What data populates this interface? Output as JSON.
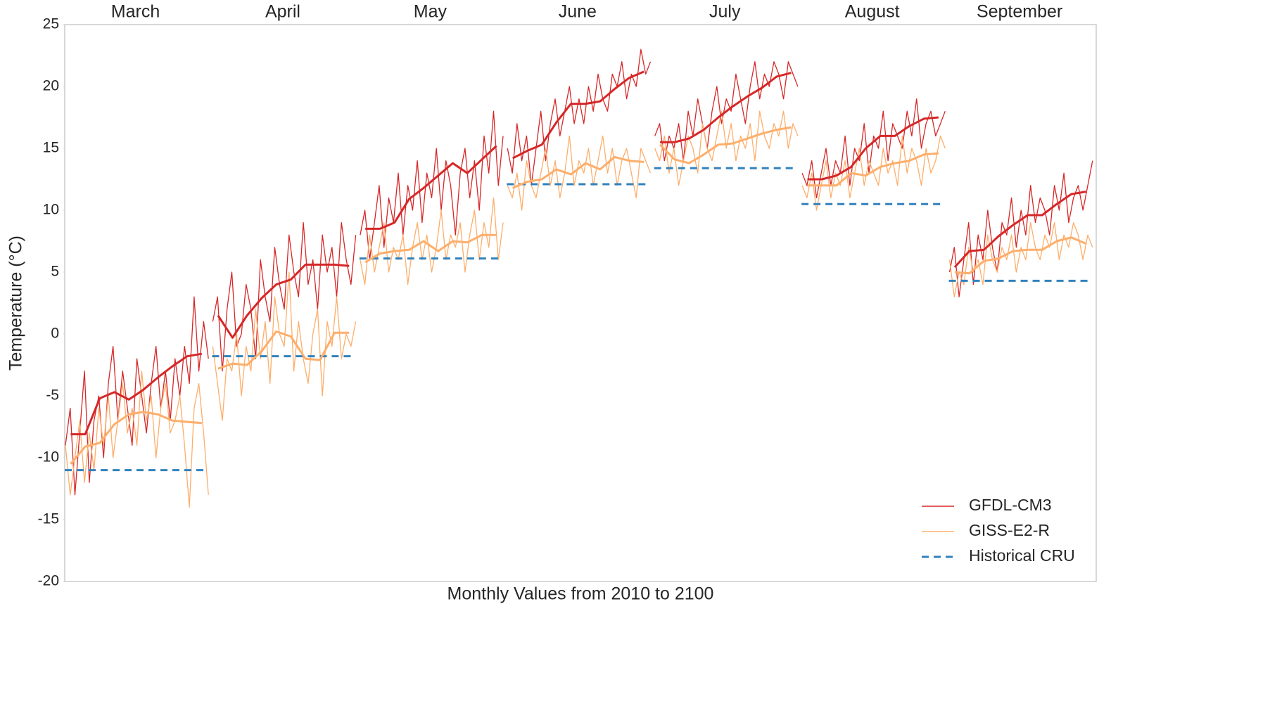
{
  "chart_data": {
    "type": "line",
    "xlabel": "Monthly Values from 2010 to 2100",
    "ylabel": "Temperature (°C)",
    "ylim": [
      -20,
      25
    ],
    "yticks": [
      -20,
      -15,
      -10,
      -5,
      0,
      5,
      10,
      15,
      20,
      25
    ],
    "legend": "lower right",
    "series": [
      {
        "name": "GFDL-CM3",
        "color": "#d62728"
      },
      {
        "name": "GISS-E2-R",
        "color": "#fdae6b"
      },
      {
        "name": "Historical CRU",
        "color": "#3182bd",
        "dashed": true
      }
    ],
    "panels": [
      {
        "title": "March",
        "gfdl": [
          -9,
          -6,
          -13,
          -8,
          -3,
          -12,
          -7,
          -5,
          -10,
          -4,
          -1,
          -7,
          -3,
          -6,
          -9,
          -2,
          -5,
          -8,
          -4,
          -1,
          -6,
          -3,
          -7,
          -2,
          -5,
          -1,
          -4,
          3,
          -3,
          1,
          -2
        ],
        "giss": [
          -9,
          -13,
          -10,
          -7,
          -12,
          -8,
          -11,
          -6,
          -9,
          -5,
          -10,
          -7,
          -4,
          -8,
          -6,
          -9,
          -3,
          -7,
          -5,
          -10,
          -6,
          -4,
          -8,
          -7,
          -5,
          -9,
          -14,
          -6,
          -4,
          -8,
          -13
        ],
        "gfdl_mean": [
          -8.1,
          -8.1,
          -5.2,
          -4.7,
          -5.3,
          -4.5,
          -3.5,
          -2.6,
          -1.8,
          -1.6
        ],
        "giss_mean": [
          -10.5,
          -9.1,
          -8.8,
          -7.3,
          -6.5,
          -6.3,
          -6.5,
          -7.0,
          -7.1,
          -7.2
        ],
        "cru": -11
      },
      {
        "title": "April",
        "gfdl": [
          1,
          3,
          -3,
          2,
          5,
          -1,
          0,
          4,
          2,
          -2,
          6,
          3,
          1,
          7,
          4,
          2,
          8,
          5,
          3,
          9,
          4,
          6,
          2,
          8,
          5,
          7,
          3,
          9,
          6,
          4,
          8
        ],
        "giss": [
          -1,
          -4,
          -7,
          -2,
          -3,
          0,
          -5,
          -1,
          -3,
          2,
          -2,
          1,
          -4,
          3,
          0,
          -1,
          5,
          -3,
          1,
          -2,
          -4,
          0,
          2,
          -5,
          1,
          -1,
          3,
          -2,
          0,
          -1,
          1
        ],
        "gfdl_mean": [
          1.5,
          -0.3,
          1.5,
          2.9,
          4.0,
          4.4,
          5.6,
          5.6,
          5.6,
          5.5
        ],
        "giss_mean": [
          -2.8,
          -2.4,
          -2.5,
          -1.4,
          0.2,
          -0.2,
          -2.0,
          -2.1,
          0.1,
          0.1
        ],
        "cru": -1.8
      },
      {
        "title": "May",
        "gfdl": [
          8,
          10,
          6,
          9,
          12,
          7,
          11,
          9,
          13,
          8,
          12,
          10,
          14,
          9,
          13,
          11,
          15,
          10,
          14,
          12,
          8,
          13,
          15,
          11,
          14,
          10,
          16,
          13,
          18,
          12,
          16
        ],
        "giss": [
          6,
          4,
          8,
          5,
          7,
          9,
          5,
          7,
          6,
          8,
          4,
          7,
          9,
          6,
          8,
          5,
          7,
          10,
          6,
          8,
          7,
          9,
          5,
          8,
          10,
          6,
          9,
          7,
          11,
          6,
          9
        ],
        "gfdl_mean": [
          8.5,
          8.5,
          9.0,
          10.9,
          11.8,
          12.8,
          13.8,
          13.0,
          14.1,
          15.2
        ],
        "giss_mean": [
          5.8,
          6.5,
          6.7,
          6.8,
          7.5,
          6.7,
          7.5,
          7.4,
          8.0,
          8.0
        ],
        "cru": 6.1
      },
      {
        "title": "June",
        "gfdl": [
          15,
          13,
          17,
          14,
          16,
          12,
          15,
          18,
          14,
          17,
          19,
          16,
          18,
          20,
          17,
          19,
          17,
          20,
          18,
          21,
          19,
          18,
          21,
          20,
          22,
          19,
          21,
          20,
          23,
          21,
          22
        ],
        "giss": [
          12,
          11,
          13,
          10,
          14,
          12,
          11,
          13,
          15,
          12,
          14,
          11,
          13,
          16,
          12,
          14,
          13,
          15,
          12,
          14,
          16,
          13,
          15,
          12,
          14,
          15,
          13,
          11,
          15,
          14,
          13
        ],
        "gfdl_mean": [
          14.2,
          14.8,
          15.3,
          17.1,
          18.6,
          18.6,
          18.8,
          19.8,
          20.7,
          21.2
        ],
        "giss_mean": [
          11.8,
          12.3,
          12.5,
          13.3,
          12.9,
          13.8,
          13.3,
          14.3,
          14.0,
          13.9
        ],
        "cru": 12.1
      },
      {
        "title": "July",
        "gfdl": [
          16,
          17,
          14,
          16,
          15,
          17,
          14,
          18,
          16,
          19,
          17,
          15,
          18,
          20,
          17,
          19,
          18,
          21,
          19,
          17,
          20,
          22,
          19,
          21,
          20,
          22,
          21,
          19,
          22,
          21,
          20
        ],
        "giss": [
          15,
          14,
          16,
          13,
          15,
          12,
          14,
          16,
          15,
          13,
          17,
          15,
          14,
          16,
          18,
          15,
          17,
          14,
          16,
          15,
          17,
          14,
          18,
          16,
          15,
          17,
          16,
          18,
          15,
          17,
          16
        ],
        "gfdl_mean": [
          15.5,
          15.5,
          15.8,
          16.5,
          17.5,
          18.4,
          19.2,
          19.9,
          20.8,
          21.1
        ],
        "giss_mean": [
          15.3,
          14.1,
          13.8,
          14.5,
          15.3,
          15.4,
          15.8,
          16.2,
          16.5,
          16.7
        ],
        "cru": 13.4
      },
      {
        "title": "August",
        "gfdl": [
          13,
          12,
          14,
          11,
          13,
          15,
          12,
          14,
          13,
          16,
          12,
          15,
          14,
          17,
          13,
          16,
          15,
          18,
          14,
          17,
          16,
          15,
          18,
          16,
          19,
          15,
          17,
          18,
          16,
          17,
          18
        ],
        "giss": [
          12,
          11,
          13,
          10,
          12,
          14,
          11,
          13,
          12,
          14,
          11,
          13,
          15,
          12,
          14,
          13,
          12,
          15,
          13,
          14,
          12,
          16,
          13,
          15,
          14,
          12,
          15,
          13,
          14,
          16,
          15
        ],
        "gfdl_mean": [
          12.5,
          12.5,
          12.8,
          13.5,
          15.0,
          16.0,
          16.0,
          16.8,
          17.4,
          17.5
        ],
        "giss_mean": [
          12.0,
          12.0,
          12.0,
          13.0,
          12.8,
          13.5,
          13.8,
          14.0,
          14.5,
          14.6
        ],
        "cru": 10.5
      },
      {
        "title": "September",
        "gfdl": [
          5,
          7,
          3,
          6,
          9,
          4,
          8,
          6,
          10,
          7,
          5,
          9,
          8,
          11,
          7,
          10,
          8,
          12,
          9,
          11,
          10,
          8,
          12,
          10,
          13,
          9,
          11,
          12,
          10,
          12,
          14
        ],
        "giss": [
          6,
          3,
          5,
          4,
          7,
          5,
          6,
          4,
          8,
          6,
          5,
          7,
          6,
          8,
          5,
          7,
          6,
          9,
          7,
          6,
          8,
          7,
          9,
          6,
          8,
          7,
          9,
          8,
          6,
          8,
          7
        ],
        "gfdl_mean": [
          5.4,
          6.7,
          6.8,
          7.9,
          8.8,
          9.6,
          9.6,
          10.5,
          11.3,
          11.5
        ],
        "giss_mean": [
          5.0,
          4.9,
          5.9,
          6.1,
          6.7,
          6.8,
          6.8,
          7.5,
          7.8,
          7.3
        ],
        "cru": 4.3
      }
    ]
  }
}
